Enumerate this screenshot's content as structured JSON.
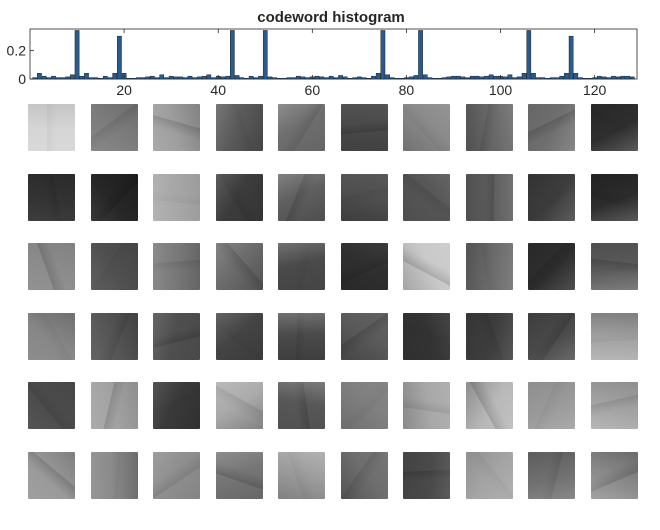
{
  "chart_data": {
    "type": "bar",
    "title": "codeword histogram",
    "xlim": [
      0,
      129
    ],
    "ylim": [
      0,
      0.35
    ],
    "xticks": [
      "20",
      "40",
      "60",
      "80",
      "100",
      "120"
    ],
    "yticks": [
      "0",
      "0.2"
    ],
    "bar_color": "#2a5a8c",
    "grid": false,
    "legend": "none",
    "x": [
      1,
      2,
      3,
      4,
      5,
      6,
      7,
      8,
      9,
      10,
      11,
      12,
      13,
      14,
      15,
      16,
      17,
      18,
      19,
      20,
      21,
      22,
      23,
      24,
      25,
      26,
      27,
      28,
      29,
      30,
      31,
      32,
      33,
      34,
      35,
      36,
      37,
      38,
      39,
      40,
      41,
      42,
      43,
      44,
      45,
      46,
      47,
      48,
      49,
      50,
      51,
      52,
      53,
      54,
      55,
      56,
      57,
      58,
      59,
      60,
      61,
      62,
      63,
      64,
      65,
      66,
      67,
      68,
      69,
      70,
      71,
      72,
      73,
      74,
      75,
      76,
      77,
      78,
      79,
      80,
      81,
      82,
      83,
      84,
      85,
      86,
      87,
      88,
      89,
      90,
      91,
      92,
      93,
      94,
      95,
      96,
      97,
      98,
      99,
      100,
      101,
      102,
      103,
      104,
      105,
      106,
      107,
      108,
      109,
      110,
      111,
      112,
      113,
      114,
      115,
      116,
      117,
      118,
      119,
      120,
      121,
      122,
      123,
      124,
      125,
      126,
      127,
      128
    ],
    "values": [
      0.01,
      0.04,
      0.02,
      0.01,
      0.02,
      0.01,
      0.01,
      0.015,
      0.03,
      0.34,
      0.02,
      0.04,
      0.01,
      0.01,
      0.005,
      0.02,
      0.01,
      0.04,
      0.3,
      0.04,
      0.005,
      0.005,
      0.01,
      0.01,
      0.015,
      0.02,
      0.01,
      0.03,
      0.01,
      0.02,
      0.015,
      0.015,
      0.01,
      0.02,
      0.01,
      0.015,
      0.02,
      0.03,
      0.01,
      0.02,
      0.015,
      0.02,
      0.34,
      0.025,
      0.01,
      0.005,
      0.02,
      0.01,
      0.02,
      0.34,
      0.015,
      0.01,
      0.005,
      0.005,
      0.01,
      0.01,
      0.02,
      0.015,
      0.01,
      0.015,
      0.02,
      0.015,
      0.01,
      0.02,
      0.01,
      0.025,
      0.015,
      0.005,
      0.01,
      0.015,
      0.01,
      0.005,
      0.02,
      0.04,
      0.34,
      0.03,
      0.01,
      0.005,
      0.005,
      0.01,
      0.015,
      0.025,
      0.34,
      0.03,
      0.01,
      0.005,
      0.005,
      0.01,
      0.015,
      0.02,
      0.02,
      0.015,
      0.01,
      0.02,
      0.02,
      0.015,
      0.02,
      0.03,
      0.02,
      0.02,
      0.015,
      0.03,
      0.01,
      0.015,
      0.04,
      0.34,
      0.04,
      0.01,
      0.01,
      0.005,
      0.01,
      0.01,
      0.02,
      0.04,
      0.3,
      0.04,
      0.01,
      0.005,
      0.005,
      0.01,
      0.02,
      0.015,
      0.01,
      0.02,
      0.015,
      0.02,
      0.02,
      0.015
    ]
  },
  "patches": {
    "rows": 6,
    "cols": 10,
    "shades": [
      [
        "#d6d6d6",
        "#7d7d7d",
        "#9e9e9e",
        "#5a5a5a",
        "#6e6e6e",
        "#4a4a4a",
        "#8a8a8a",
        "#686868",
        "#6f6f6f",
        "#2e2e2e"
      ],
      [
        "#333333",
        "#262626",
        "#a8a8a8",
        "#3c3c3c",
        "#5f5f5f",
        "#4f4f4f",
        "#555555",
        "#5c5c5c",
        "#3d3d3d",
        "#2c2c2c"
      ],
      [
        "#8c8c8c",
        "#505050",
        "#7a7a7a",
        "#6c6c6c",
        "#4a4a4a",
        "#2f2f2f",
        "#c9c9c9",
        "#6b6b6b",
        "#2d2d2d",
        "#5a5a5a"
      ],
      [
        "#878787",
        "#555555",
        "#4f4f4f",
        "#444444",
        "#4b4b4b",
        "#5a5a5a",
        "#333333",
        "#3d3d3d",
        "#4a4a4a",
        "#a3a3a3"
      ],
      [
        "#4c4c4c",
        "#a3a3a3",
        "#3a3a3a",
        "#ababab",
        "#575757",
        "#7f7f7f",
        "#a8a8a8",
        "#b8b8b8",
        "#9a9a9a",
        "#a3a3a3"
      ],
      [
        "#9a9a9a",
        "#8b8b8b",
        "#8f8f8f",
        "#767676",
        "#9d9d9d",
        "#6e6e6e",
        "#494949",
        "#a5a5a5",
        "#707070",
        "#8a8a8a"
      ]
    ]
  }
}
